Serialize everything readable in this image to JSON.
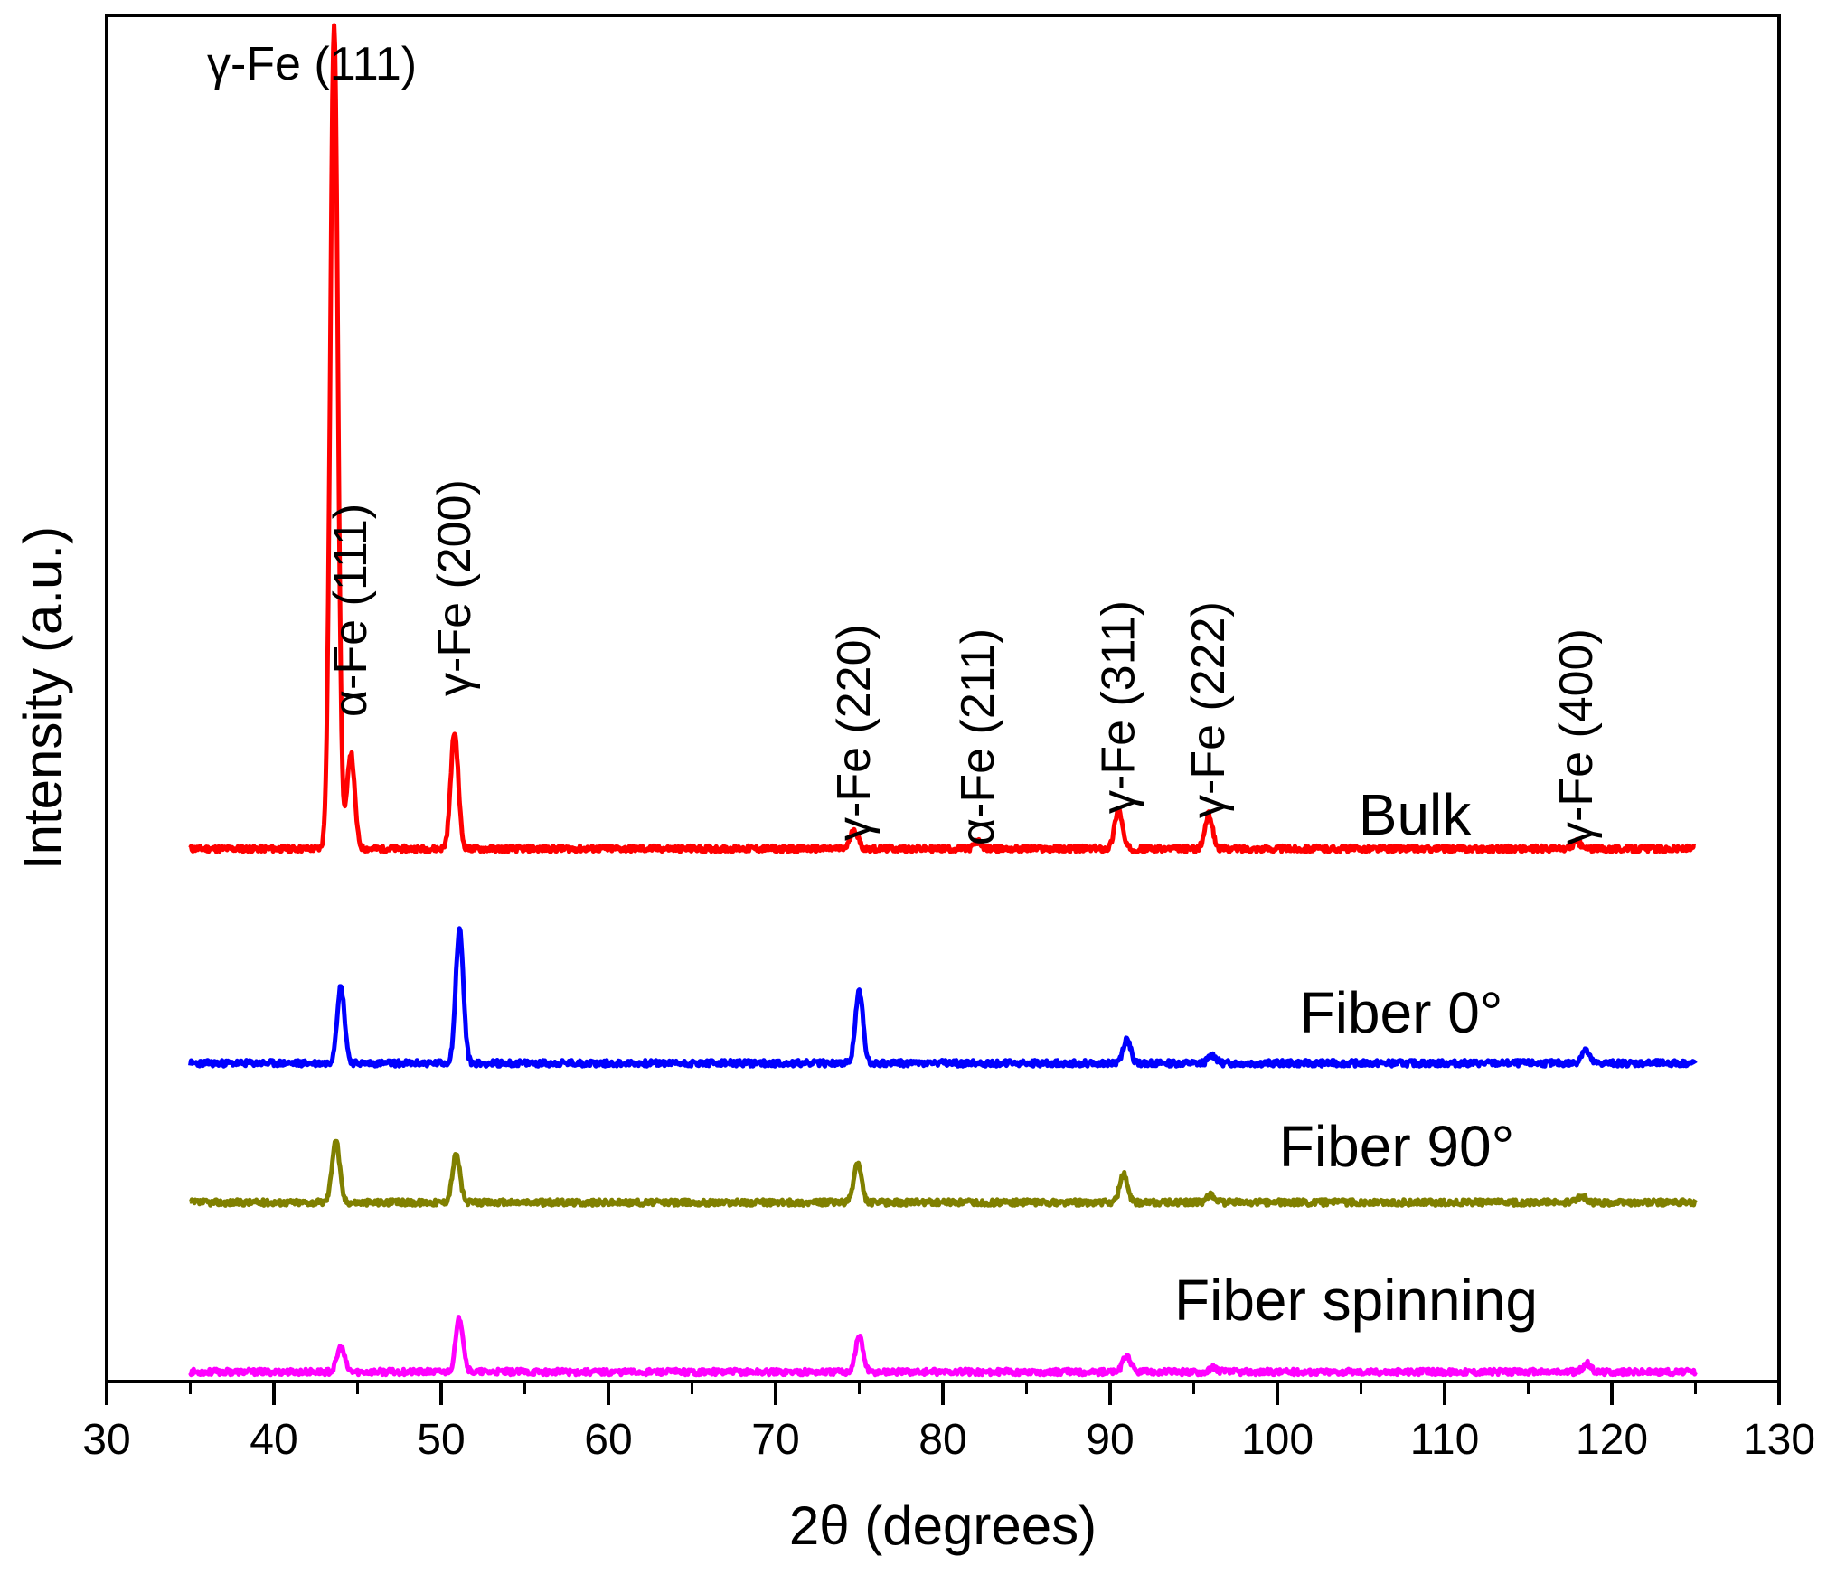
{
  "chart_data": {
    "type": "line",
    "title": "",
    "xlabel": "2θ (degrees)",
    "ylabel": "Intensity (a.u.)",
    "xlim": [
      30,
      130
    ],
    "ylim": [
      0,
      100
    ],
    "x_ticks": [
      30,
      40,
      50,
      60,
      70,
      80,
      90,
      100,
      110,
      120,
      130
    ],
    "x_range": [
      35,
      125
    ],
    "series": [
      {
        "name": "Bulk",
        "color": "#ff0000",
        "baseline": 39.0,
        "noise_seed": 11,
        "peaks": [
          [
            43.6,
            60.2
          ],
          [
            44.6,
            7.0
          ],
          [
            50.8,
            8.5
          ],
          [
            74.7,
            1.4
          ],
          [
            82.1,
            0.5
          ],
          [
            90.5,
            2.9
          ],
          [
            95.9,
            2.5
          ],
          [
            117.9,
            0.5
          ]
        ]
      },
      {
        "name": "Fiber 0°",
        "color": "#0000ff",
        "baseline": 23.3,
        "noise_seed": 23,
        "peaks": [
          [
            44.0,
            5.6
          ],
          [
            51.1,
            9.8
          ],
          [
            75.0,
            5.3
          ],
          [
            91.0,
            1.7
          ],
          [
            96.1,
            0.6
          ],
          [
            118.4,
            1.0
          ]
        ]
      },
      {
        "name": "Fiber 90°",
        "color": "#808000",
        "baseline": 13.1,
        "noise_seed": 37,
        "peaks": [
          [
            43.7,
            4.6
          ],
          [
            50.9,
            3.5
          ],
          [
            74.9,
            2.9
          ],
          [
            90.8,
            2.1
          ],
          [
            96.0,
            0.6
          ],
          [
            118.2,
            0.5
          ]
        ]
      },
      {
        "name": "Fiber spinning",
        "color": "#ff00ff",
        "baseline": 0.7,
        "noise_seed": 53,
        "peaks": [
          [
            44.0,
            1.8
          ],
          [
            51.1,
            3.9
          ],
          [
            75.0,
            2.6
          ],
          [
            91.0,
            1.2
          ],
          [
            96.2,
            0.3
          ],
          [
            118.5,
            0.6
          ]
        ]
      }
    ],
    "annotations": [
      {
        "text": "γ-Fe (111)",
        "x": 43.6,
        "orientation": "horizontal"
      },
      {
        "text": "α-Fe (111)",
        "x": 44.6,
        "orientation": "vertical"
      },
      {
        "text": "γ-Fe (200)",
        "x": 50.8,
        "orientation": "vertical"
      },
      {
        "text": "γ-Fe (220)",
        "x": 74.7,
        "orientation": "vertical"
      },
      {
        "text": "α-Fe (211)",
        "x": 82.1,
        "orientation": "vertical"
      },
      {
        "text": "γ-Fe (311)",
        "x": 90.5,
        "orientation": "vertical"
      },
      {
        "text": "γ-Fe (222)",
        "x": 95.9,
        "orientation": "vertical"
      },
      {
        "text": "γ-Fe (400)",
        "x": 117.9,
        "orientation": "vertical"
      }
    ]
  }
}
